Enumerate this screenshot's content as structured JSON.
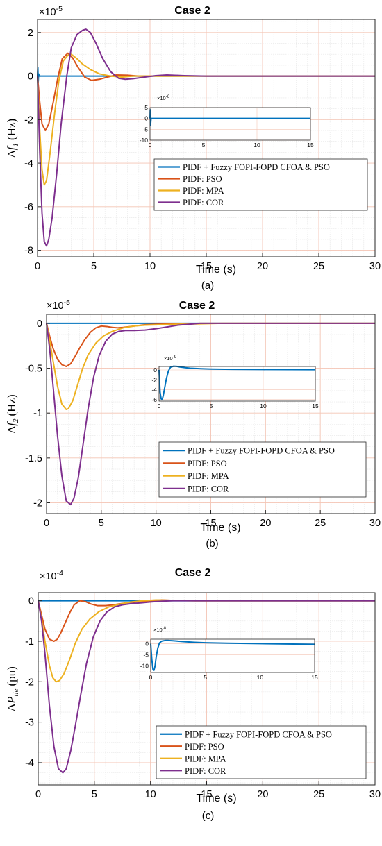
{
  "colors": {
    "pidf_fuzzy": "#0072BD",
    "pso": "#D95319",
    "mpa": "#EDB120",
    "cor": "#7E2F8E",
    "grid_major": "#F4C5B5",
    "grid_minor": "#E6E6E6"
  },
  "chart_data": [
    {
      "type": "line",
      "title": "Case 2",
      "xlabel": "Time (s)",
      "ylabel_prefix": "Δ",
      "ylabel_symbol": "f",
      "ylabel_sub": "1",
      "ylabel_unit": "(Hz)",
      "caption": "(a)",
      "multiplier_base": "×10",
      "multiplier_exp": "-5",
      "xlim": [
        0,
        30
      ],
      "ylim": [
        -8.3,
        2.6
      ],
      "xticks": [
        0,
        5,
        10,
        15,
        20,
        25,
        30
      ],
      "yticks": [
        2,
        0,
        -2,
        -4,
        -6,
        -8
      ],
      "grid": true,
      "legend_position": "lower-right",
      "series": [
        {
          "name": "PIDF + Fuzzy FOPI-FOPD CFOA & PSO",
          "color_key": "pidf_fuzzy",
          "x": [
            0,
            0.03,
            0.06,
            0.1,
            0.15,
            0.25,
            30
          ],
          "y": [
            0,
            0.4,
            -0.3,
            0.1,
            0,
            0,
            0
          ]
        },
        {
          "name": "PIDF: PSO",
          "color_key": "pso",
          "x": [
            0,
            0.2,
            0.4,
            0.7,
            1.0,
            1.4,
            1.8,
            2.2,
            2.7,
            3.1,
            3.6,
            4.2,
            4.8,
            5.5,
            6.2,
            7.0,
            8.0,
            9.0,
            10.5,
            12,
            14,
            30
          ],
          "y": [
            0,
            -1.2,
            -2.2,
            -2.5,
            -2.2,
            -1.2,
            -0.1,
            0.8,
            1.05,
            0.85,
            0.4,
            -0.05,
            -0.2,
            -0.15,
            -0.05,
            0.05,
            0.04,
            0,
            0,
            0,
            0,
            0
          ]
        },
        {
          "name": "PIDF: MPA",
          "color_key": "mpa",
          "x": [
            0,
            0.2,
            0.4,
            0.6,
            0.8,
            1.1,
            1.5,
            1.9,
            2.3,
            2.7,
            3.0,
            3.5,
            4.0,
            4.7,
            5.5,
            6.5,
            7.5,
            8.5,
            10,
            11,
            13,
            30
          ],
          "y": [
            0,
            -2.5,
            -4.3,
            -5.0,
            -4.8,
            -3.6,
            -1.8,
            -0.2,
            0.7,
            0.95,
            1.0,
            0.8,
            0.55,
            0.3,
            0.1,
            0,
            -0.05,
            0,
            0,
            0,
            0,
            0
          ]
        },
        {
          "name": "PIDF: COR",
          "color_key": "cor",
          "x": [
            0,
            0.2,
            0.4,
            0.6,
            0.8,
            1.0,
            1.3,
            1.7,
            2.1,
            2.6,
            3.0,
            3.5,
            4.0,
            4.3,
            4.7,
            5.2,
            5.8,
            6.5,
            7.2,
            7.8,
            8.5,
            9.5,
            10.5,
            11.5,
            13,
            15,
            30
          ],
          "y": [
            0,
            -3.5,
            -6.3,
            -7.6,
            -7.8,
            -7.5,
            -6.5,
            -4.5,
            -2.2,
            0,
            1.3,
            1.9,
            2.1,
            2.15,
            2.0,
            1.5,
            0.8,
            0.2,
            -0.1,
            -0.15,
            -0.12,
            -0.05,
            0.02,
            0.05,
            0.02,
            0,
            0
          ]
        }
      ],
      "inset": {
        "multiplier_base": "×10",
        "multiplier_exp": "-6",
        "xlim": [
          0,
          15
        ],
        "ylim": [
          -10,
          5
        ],
        "xticks": [
          0,
          5,
          10,
          15
        ],
        "yticks": [
          5,
          0,
          -5,
          -10
        ],
        "x": [
          0,
          0.02,
          0.05,
          0.1,
          15
        ],
        "y": [
          0,
          4,
          -3,
          0,
          0
        ]
      }
    },
    {
      "type": "line",
      "title": "Case 2",
      "xlabel": "Time (s)",
      "ylabel_prefix": "Δ",
      "ylabel_symbol": "f",
      "ylabel_sub": "2",
      "ylabel_unit": "(Hz)",
      "caption": "(b)",
      "multiplier_base": "×10",
      "multiplier_exp": "-5",
      "xlim": [
        0,
        30
      ],
      "ylim": [
        -2.12,
        0.1
      ],
      "xticks": [
        0,
        5,
        10,
        15,
        20,
        25,
        30
      ],
      "yticks": [
        0,
        -0.5,
        -1,
        -1.5,
        -2
      ],
      "yticklabels": [
        "0",
        "-0.5",
        "-1",
        "-1.5",
        "-2"
      ],
      "grid": true,
      "legend_position": "lower-right",
      "series": [
        {
          "name": "PIDF + Fuzzy FOPI-FOPD CFOA & PSO",
          "color_key": "pidf_fuzzy",
          "x": [
            0,
            30
          ],
          "y": [
            0,
            0
          ]
        },
        {
          "name": "PIDF: PSO",
          "color_key": "pso",
          "x": [
            0,
            0.3,
            0.6,
            1.0,
            1.4,
            1.8,
            2.2,
            2.6,
            3.0,
            3.5,
            4.0,
            4.5,
            5.0,
            5.5,
            6.0,
            6.5,
            7.0,
            8.0,
            9.0,
            10,
            12,
            14,
            16,
            30
          ],
          "y": [
            0,
            -0.15,
            -0.28,
            -0.4,
            -0.46,
            -0.48,
            -0.45,
            -0.37,
            -0.28,
            -0.18,
            -0.1,
            -0.05,
            -0.03,
            -0.035,
            -0.045,
            -0.05,
            -0.045,
            -0.03,
            -0.015,
            -0.01,
            -0.005,
            0,
            0,
            0
          ]
        },
        {
          "name": "PIDF: MPA",
          "color_key": "mpa",
          "x": [
            0,
            0.3,
            0.6,
            1.0,
            1.4,
            1.8,
            2.0,
            2.4,
            2.8,
            3.3,
            3.8,
            4.5,
            5.2,
            6.0,
            7.0,
            8.0,
            9.0,
            10.5,
            12,
            14,
            16,
            30
          ],
          "y": [
            0,
            -0.2,
            -0.42,
            -0.7,
            -0.9,
            -0.96,
            -0.95,
            -0.86,
            -0.7,
            -0.5,
            -0.35,
            -0.22,
            -0.14,
            -0.09,
            -0.05,
            -0.03,
            -0.02,
            -0.015,
            -0.01,
            -0.005,
            0,
            0
          ]
        },
        {
          "name": "PIDF: COR",
          "color_key": "cor",
          "x": [
            0,
            0.3,
            0.6,
            1.0,
            1.4,
            1.8,
            2.2,
            2.5,
            2.9,
            3.3,
            3.8,
            4.3,
            4.8,
            5.4,
            6.0,
            6.6,
            7.2,
            8.0,
            9.0,
            10,
            11,
            12,
            13,
            14,
            16,
            30
          ],
          "y": [
            0,
            -0.3,
            -0.7,
            -1.25,
            -1.7,
            -1.98,
            -2.02,
            -1.95,
            -1.72,
            -1.38,
            -0.95,
            -0.6,
            -0.36,
            -0.2,
            -0.12,
            -0.09,
            -0.08,
            -0.08,
            -0.075,
            -0.06,
            -0.04,
            -0.02,
            -0.01,
            0,
            0,
            0
          ]
        }
      ],
      "inset": {
        "multiplier_base": "×10",
        "multiplier_exp": "-9",
        "xlim": [
          0,
          15
        ],
        "ylim": [
          -6.3,
          0.7
        ],
        "xticks": [
          0,
          5,
          10,
          15
        ],
        "yticks": [
          0,
          -2,
          -4,
          -6
        ],
        "x": [
          0,
          0.1,
          0.2,
          0.3,
          0.4,
          0.55,
          0.7,
          0.9,
          1.1,
          1.4,
          1.7,
          2.0,
          2.5,
          3.0,
          4.0,
          5.0,
          7.0,
          10.0,
          15.0
        ],
        "y": [
          0,
          -4.5,
          -5.8,
          -6.0,
          -5.2,
          -3.5,
          -1.8,
          -0.2,
          0.55,
          0.75,
          0.72,
          0.6,
          0.45,
          0.35,
          0.25,
          0.18,
          0.12,
          0.08,
          0.05
        ]
      }
    },
    {
      "type": "line",
      "title": "Case 2",
      "xlabel": "Time (s)",
      "ylabel_prefix": "Δ",
      "ylabel_symbol": "P",
      "ylabel_sub": "tie",
      "ylabel_unit": "(pu)",
      "caption": "(c)",
      "multiplier_base": "×10",
      "multiplier_exp": "-4",
      "xlim": [
        0,
        30
      ],
      "ylim": [
        -4.55,
        0.2
      ],
      "xticks": [
        0,
        5,
        10,
        15,
        20,
        25,
        30
      ],
      "yticks": [
        0,
        -1,
        -2,
        -3,
        -4
      ],
      "grid": true,
      "legend_position": "lower-right",
      "series": [
        {
          "name": "PIDF + Fuzzy FOPI-FOPD CFOA & PSO",
          "color_key": "pidf_fuzzy",
          "x": [
            0,
            30
          ],
          "y": [
            0,
            0
          ]
        },
        {
          "name": "PIDF: PSO",
          "color_key": "pso",
          "x": [
            0,
            0.3,
            0.6,
            1.0,
            1.4,
            1.7,
            2.0,
            2.4,
            2.8,
            3.2,
            3.7,
            4.2,
            4.7,
            5.3,
            6.0,
            6.7,
            7.4,
            8.2,
            9.0,
            10,
            11,
            12,
            14,
            16,
            30
          ],
          "y": [
            0,
            -0.35,
            -0.7,
            -0.95,
            -1.0,
            -0.95,
            -0.8,
            -0.55,
            -0.3,
            -0.1,
            0,
            -0.02,
            -0.08,
            -0.12,
            -0.12,
            -0.1,
            -0.07,
            -0.04,
            -0.02,
            0,
            0.02,
            0.01,
            0,
            0,
            0
          ]
        },
        {
          "name": "PIDF: MPA",
          "color_key": "mpa",
          "x": [
            0,
            0.3,
            0.6,
            1.0,
            1.3,
            1.6,
            1.9,
            2.3,
            2.8,
            3.3,
            3.9,
            4.6,
            5.4,
            6.3,
            7.3,
            8.3,
            9.3,
            10.5,
            12,
            13.5,
            15,
            30
          ],
          "y": [
            0,
            -0.45,
            -1.0,
            -1.6,
            -1.9,
            -2.0,
            -1.97,
            -1.8,
            -1.45,
            -1.05,
            -0.7,
            -0.45,
            -0.27,
            -0.15,
            -0.08,
            -0.03,
            0,
            0.02,
            0.01,
            0,
            0,
            0
          ]
        },
        {
          "name": "PIDF: COR",
          "color_key": "cor",
          "x": [
            0,
            0.3,
            0.6,
            1.0,
            1.4,
            1.8,
            2.2,
            2.5,
            2.9,
            3.3,
            3.8,
            4.3,
            4.9,
            5.5,
            6.1,
            6.8,
            7.5,
            8.3,
            9.2,
            10,
            11,
            12,
            13,
            14,
            16,
            30
          ],
          "y": [
            0,
            -0.5,
            -1.3,
            -2.6,
            -3.6,
            -4.15,
            -4.25,
            -4.15,
            -3.7,
            -3.1,
            -2.3,
            -1.55,
            -0.9,
            -0.5,
            -0.28,
            -0.15,
            -0.1,
            -0.07,
            -0.05,
            -0.03,
            -0.01,
            0,
            0,
            0,
            0,
            0
          ]
        }
      ],
      "inset": {
        "multiplier_base": "×10",
        "multiplier_exp": "-8",
        "xlim": [
          0,
          15
        ],
        "ylim": [
          -13,
          2
        ],
        "xticks": [
          0,
          5,
          10,
          15
        ],
        "yticks": [
          0,
          -5,
          -10
        ],
        "x": [
          0,
          0.1,
          0.2,
          0.3,
          0.4,
          0.5,
          0.65,
          0.8,
          1.0,
          1.3,
          1.6,
          2.0,
          2.5,
          3.0,
          4.0,
          5.0,
          7.0,
          10.0,
          15.0
        ],
        "y": [
          0,
          -7,
          -11.5,
          -12,
          -10,
          -6,
          -2,
          0.3,
          1.1,
          1.4,
          1.4,
          1.3,
          1.1,
          0.9,
          0.6,
          0.4,
          0.2,
          0,
          -0.3
        ]
      }
    }
  ]
}
